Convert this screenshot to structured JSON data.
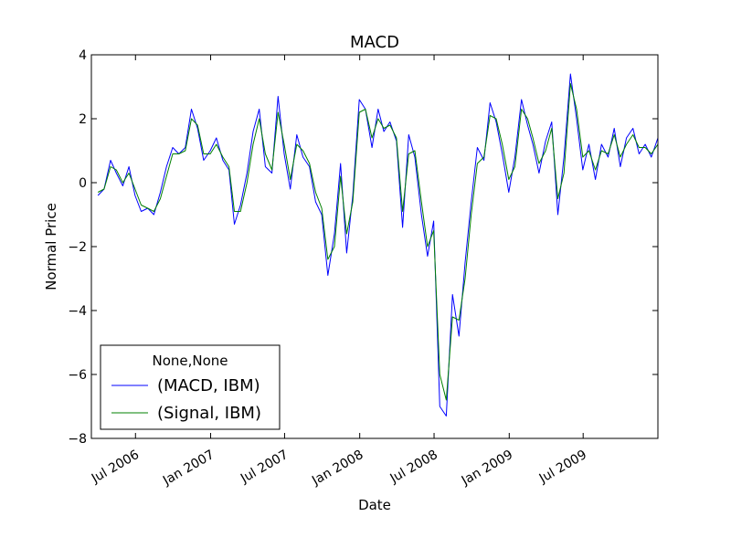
{
  "chart_data": {
    "type": "line",
    "title": "MACD",
    "xlabel": "Date",
    "ylabel": "Normal Price",
    "ylim": [
      -8,
      4
    ],
    "yticks": [
      -8,
      -6,
      -4,
      -2,
      0,
      2,
      4
    ],
    "ytick_labels": [
      "−8",
      "−6",
      "−4",
      "−2",
      "0",
      "2",
      "4"
    ],
    "xlim": [
      "2006-03-15",
      "2009-12-31"
    ],
    "xticks": [
      {
        "date": "2006-07-01",
        "label": "Jul 2006"
      },
      {
        "date": "2007-01-01",
        "label": "Jan 2007"
      },
      {
        "date": "2007-07-01",
        "label": "Jul 2007"
      },
      {
        "date": "2008-01-01",
        "label": "Jan 2008"
      },
      {
        "date": "2008-07-01",
        "label": "Jul 2008"
      },
      {
        "date": "2009-01-01",
        "label": "Jan 2009"
      },
      {
        "date": "2009-07-01",
        "label": "Jul 2009"
      }
    ],
    "grid": false,
    "legend": {
      "title": "None,None",
      "placement": "lower-left",
      "entries": [
        "(MACD, IBM)",
        "(Signal, IBM)"
      ]
    },
    "series": [
      {
        "name": "(MACD, IBM)",
        "color": "#0000ff",
        "x": [
          "2006-03-31",
          "2006-04-15",
          "2006-05-01",
          "2006-05-15",
          "2006-05-31",
          "2006-06-15",
          "2006-06-30",
          "2006-07-15",
          "2006-07-31",
          "2006-08-15",
          "2006-08-31",
          "2006-09-15",
          "2006-09-30",
          "2006-10-15",
          "2006-10-31",
          "2006-11-15",
          "2006-11-30",
          "2006-12-15",
          "2006-12-31",
          "2007-01-15",
          "2007-01-31",
          "2007-02-15",
          "2007-02-28",
          "2007-03-15",
          "2007-03-31",
          "2007-04-15",
          "2007-04-30",
          "2007-05-15",
          "2007-05-31",
          "2007-06-15",
          "2007-06-30",
          "2007-07-15",
          "2007-07-31",
          "2007-08-15",
          "2007-08-31",
          "2007-09-15",
          "2007-09-30",
          "2007-10-15",
          "2007-10-31",
          "2007-11-15",
          "2007-11-30",
          "2007-12-15",
          "2007-12-31",
          "2008-01-15",
          "2008-01-31",
          "2008-02-15",
          "2008-02-29",
          "2008-03-15",
          "2008-03-31",
          "2008-04-15",
          "2008-04-30",
          "2008-05-15",
          "2008-05-31",
          "2008-06-15",
          "2008-06-30",
          "2008-07-15",
          "2008-07-31",
          "2008-08-15",
          "2008-08-31",
          "2008-09-15",
          "2008-09-30",
          "2008-10-15",
          "2008-10-31",
          "2008-11-15",
          "2008-11-30",
          "2008-12-15",
          "2008-12-31",
          "2009-01-15",
          "2009-01-31",
          "2009-02-15",
          "2009-02-28",
          "2009-03-15",
          "2009-03-31",
          "2009-04-15",
          "2009-04-30",
          "2009-05-15",
          "2009-05-31",
          "2009-06-15",
          "2009-06-30",
          "2009-07-15",
          "2009-07-31",
          "2009-08-15",
          "2009-08-31",
          "2009-09-15",
          "2009-09-30",
          "2009-10-15",
          "2009-10-31",
          "2009-11-15",
          "2009-11-30",
          "2009-12-15",
          "2009-12-31"
        ],
        "values": [
          -0.4,
          -0.2,
          0.7,
          0.3,
          -0.1,
          0.5,
          -0.4,
          -0.9,
          -0.8,
          -1.0,
          -0.3,
          0.5,
          1.1,
          0.9,
          1.1,
          2.3,
          1.7,
          0.7,
          1.0,
          1.4,
          0.7,
          0.4,
          -1.3,
          -0.7,
          0.3,
          1.6,
          2.3,
          0.5,
          0.3,
          2.7,
          0.9,
          -0.2,
          1.5,
          0.8,
          0.5,
          -0.6,
          -1.0,
          -2.9,
          -1.6,
          0.6,
          -2.2,
          -0.4,
          2.6,
          2.3,
          1.1,
          2.3,
          1.6,
          1.9,
          1.3,
          -1.4,
          1.5,
          0.8,
          -1.0,
          -2.3,
          -1.2,
          -7.0,
          -7.3,
          -3.5,
          -4.8,
          -2.5,
          -0.6,
          1.1,
          0.7,
          2.5,
          1.9,
          0.9,
          -0.3,
          0.8,
          2.6,
          1.8,
          1.2,
          0.3,
          1.3,
          1.9,
          -1.0,
          0.8,
          3.4,
          2.0,
          0.4,
          1.2,
          0.1,
          1.2,
          0.8,
          1.7,
          0.5,
          1.4,
          1.7,
          0.9,
          1.2,
          0.8,
          1.4
        ]
      },
      {
        "name": "(Signal, IBM)",
        "color": "#008000",
        "x": [
          "2006-03-31",
          "2006-04-15",
          "2006-05-01",
          "2006-05-15",
          "2006-05-31",
          "2006-06-15",
          "2006-06-30",
          "2006-07-15",
          "2006-07-31",
          "2006-08-15",
          "2006-08-31",
          "2006-09-15",
          "2006-09-30",
          "2006-10-15",
          "2006-10-31",
          "2006-11-15",
          "2006-11-30",
          "2006-12-15",
          "2006-12-31",
          "2007-01-15",
          "2007-01-31",
          "2007-02-15",
          "2007-02-28",
          "2007-03-15",
          "2007-03-31",
          "2007-04-15",
          "2007-04-30",
          "2007-05-15",
          "2007-05-31",
          "2007-06-15",
          "2007-06-30",
          "2007-07-15",
          "2007-07-31",
          "2007-08-15",
          "2007-08-31",
          "2007-09-15",
          "2007-09-30",
          "2007-10-15",
          "2007-10-31",
          "2007-11-15",
          "2007-11-30",
          "2007-12-15",
          "2007-12-31",
          "2008-01-15",
          "2008-01-31",
          "2008-02-15",
          "2008-02-29",
          "2008-03-15",
          "2008-03-31",
          "2008-04-15",
          "2008-04-30",
          "2008-05-15",
          "2008-05-31",
          "2008-06-15",
          "2008-06-30",
          "2008-07-15",
          "2008-07-31",
          "2008-08-15",
          "2008-08-31",
          "2008-09-15",
          "2008-09-30",
          "2008-10-15",
          "2008-10-31",
          "2008-11-15",
          "2008-11-30",
          "2008-12-15",
          "2008-12-31",
          "2009-01-15",
          "2009-01-31",
          "2009-02-15",
          "2009-02-28",
          "2009-03-15",
          "2009-03-31",
          "2009-04-15",
          "2009-04-30",
          "2009-05-15",
          "2009-05-31",
          "2009-06-15",
          "2009-06-30",
          "2009-07-15",
          "2009-07-31",
          "2009-08-15",
          "2009-08-31",
          "2009-09-15",
          "2009-09-30",
          "2009-10-15",
          "2009-10-31",
          "2009-11-15",
          "2009-11-30",
          "2009-12-15",
          "2009-12-31"
        ],
        "values": [
          -0.3,
          -0.2,
          0.5,
          0.4,
          0.0,
          0.3,
          -0.2,
          -0.7,
          -0.8,
          -0.9,
          -0.5,
          0.2,
          0.9,
          0.9,
          1.0,
          2.0,
          1.8,
          0.9,
          0.9,
          1.2,
          0.8,
          0.5,
          -0.9,
          -0.9,
          0.0,
          1.2,
          2.0,
          0.9,
          0.4,
          2.2,
          1.2,
          0.1,
          1.2,
          1.0,
          0.6,
          -0.3,
          -0.8,
          -2.4,
          -2.0,
          0.2,
          -1.6,
          -0.6,
          2.2,
          2.3,
          1.4,
          2.0,
          1.7,
          1.8,
          1.4,
          -0.9,
          0.9,
          1.0,
          -0.6,
          -2.0,
          -1.5,
          -6.0,
          -6.8,
          -4.2,
          -4.3,
          -3.0,
          -1.0,
          0.6,
          0.8,
          2.1,
          2.0,
          1.2,
          0.1,
          0.5,
          2.3,
          2.0,
          1.4,
          0.6,
          1.0,
          1.7,
          -0.5,
          0.3,
          3.1,
          2.3,
          0.8,
          1.0,
          0.4,
          1.0,
          0.9,
          1.5,
          0.8,
          1.2,
          1.5,
          1.1,
          1.1,
          0.9,
          1.2
        ]
      }
    ]
  }
}
